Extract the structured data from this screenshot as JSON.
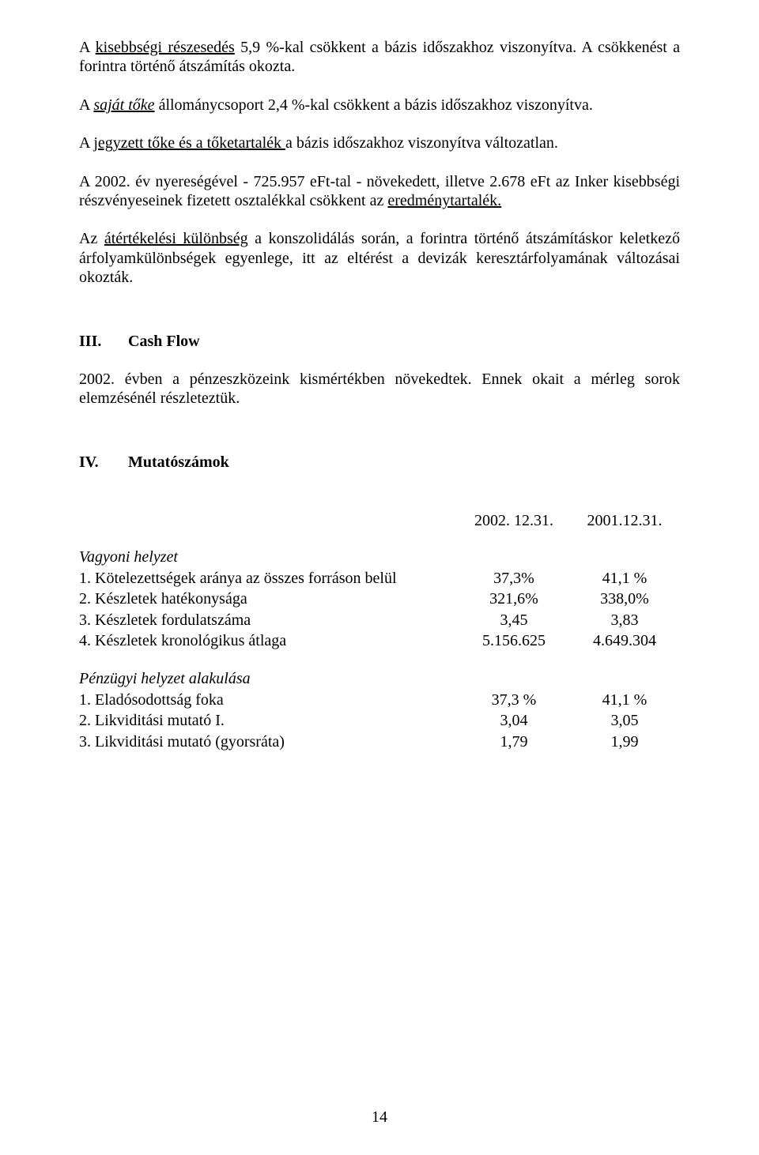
{
  "p1": {
    "s1a": "A ",
    "s1b": "kisebbségi részesedés",
    "s1c": " 5,9  %-kal csökkent a bázis időszakhoz viszonyítva. A csökkenést a forintra történő átszámítás okozta."
  },
  "p2": {
    "s1a": "A ",
    "s1b": "saját tőke",
    "s1c": " állománycsoport 2,4 %-kal csökkent a bázis időszakhoz viszonyítva."
  },
  "p3": {
    "s1a": "A ",
    "s1b": "jegyzett tőke és a tőketartalék ",
    "s1c": "a bázis időszakhoz viszonyítva változatlan."
  },
  "p4": {
    "s1": "A 2002. év nyereségével - 725.957 eFt-tal -  növekedett, illetve 2.678 eFt az Inker kisebbségi részvényeseinek fizetett osztalékkal csökkent az  ",
    "s2": "eredménytartalék."
  },
  "p5": {
    "s1": "Az ",
    "s2": "átértékelési különbség",
    "s3": " a konszolidálás során, a forintra történő átszámításkor keletkező árfolyamkülönbségek egyenlege, itt az eltérést a devizák keresztárfolyamának változásai okozták."
  },
  "sec3": {
    "num": "III.",
    "title": "Cash Flow"
  },
  "p6": "2002. évben a pénzeszközeink kismértékben növekedtek. Ennek okait a mérleg sorok elemzésénél részleteztük.",
  "sec4": {
    "num": "IV.",
    "title": "Mutatószámok"
  },
  "dates": {
    "d1": "2002. 12.31.",
    "d2": "2001.12.31."
  },
  "group1": {
    "title": "Vagyoni helyzet",
    "rows": [
      {
        "label": "1. Kötelezettségek aránya az összes forráson belül",
        "v1": "37,3%",
        "v2": "41,1 %"
      },
      {
        "label": "2. Készletek hatékonysága",
        "v1": "321,6%",
        "v2": "338,0%"
      },
      {
        "label": "3. Készletek fordulatszáma",
        "v1": "3,45",
        "v2": "3,83"
      },
      {
        "label": "4. Készletek kronológikus átlaga",
        "v1": "5.156.625",
        "v2": "4.649.304"
      }
    ]
  },
  "group2": {
    "title": "Pénzügyi helyzet alakulása",
    "rows": [
      {
        "label": "1. Eladósodottság foka",
        "v1": "37,3 %",
        "v2": "41,1 %"
      },
      {
        "label": "2. Likviditási mutató I.",
        "v1": "3,04",
        "v2": "3,05"
      },
      {
        "label": "3. Likviditási mutató (gyorsráta)",
        "v1": "1,79",
        "v2": "1,99"
      }
    ]
  },
  "page_number": "14"
}
